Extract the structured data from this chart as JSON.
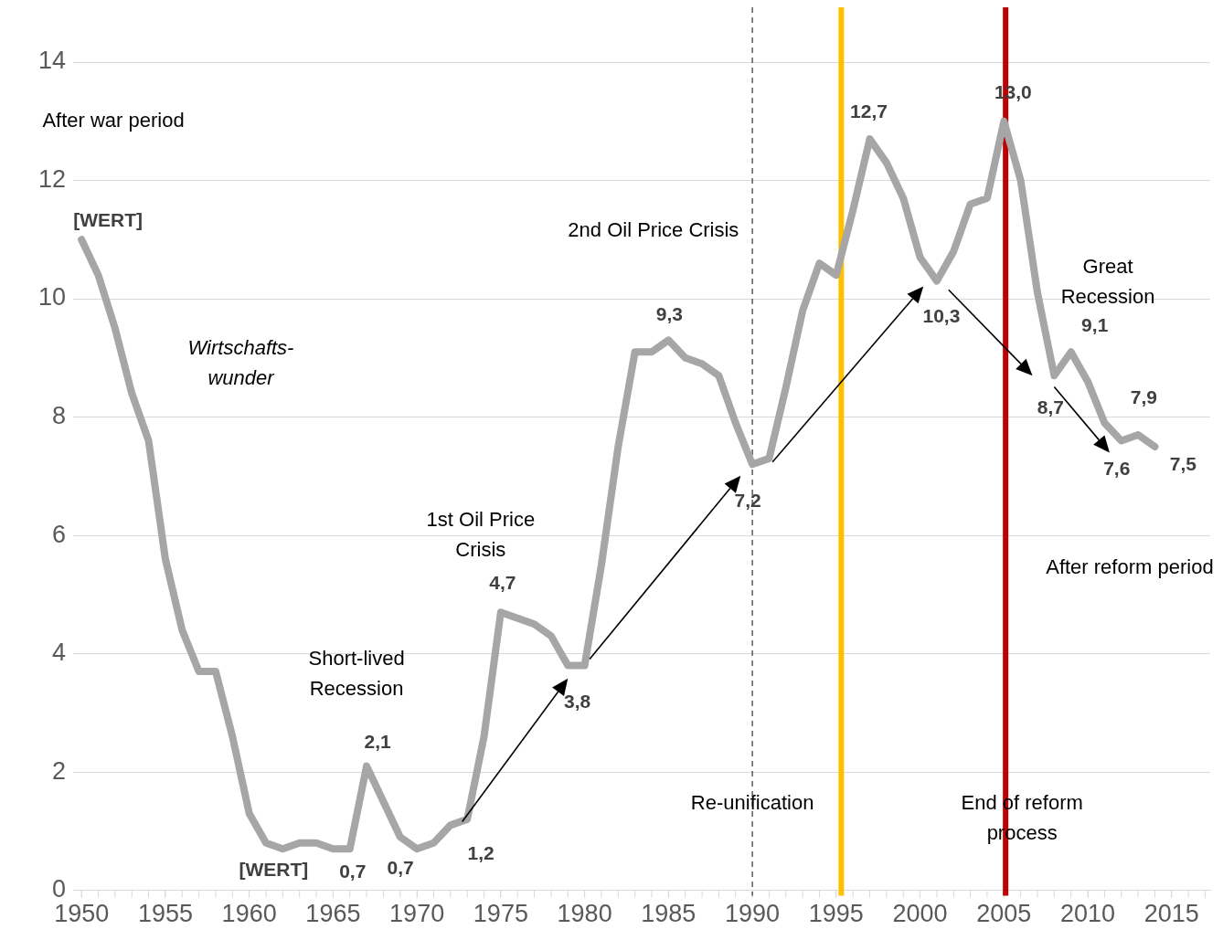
{
  "chart_data": {
    "type": "line",
    "x": [
      1950,
      1951,
      1952,
      1953,
      1954,
      1955,
      1956,
      1957,
      1958,
      1959,
      1960,
      1961,
      1962,
      1963,
      1964,
      1965,
      1966,
      1967,
      1968,
      1969,
      1970,
      1971,
      1972,
      1973,
      1974,
      1975,
      1976,
      1977,
      1978,
      1979,
      1980,
      1981,
      1982,
      1983,
      1984,
      1985,
      1986,
      1987,
      1988,
      1989,
      1990,
      1991,
      1992,
      1993,
      1994,
      1995,
      1996,
      1997,
      1998,
      1999,
      2000,
      2001,
      2002,
      2003,
      2004,
      2005,
      2006,
      2007,
      2008,
      2009,
      2010,
      2011,
      2012,
      2013,
      2014
    ],
    "series": [
      {
        "color": "#a6a6a6",
        "values": [
          11.0,
          10.4,
          9.5,
          8.4,
          7.6,
          5.6,
          4.4,
          3.7,
          3.7,
          2.6,
          1.3,
          0.8,
          0.7,
          0.8,
          0.8,
          0.7,
          0.7,
          2.1,
          1.5,
          0.9,
          0.7,
          0.8,
          1.1,
          1.2,
          2.6,
          4.7,
          4.6,
          4.5,
          4.3,
          3.8,
          3.8,
          5.5,
          7.5,
          9.1,
          9.1,
          9.3,
          9.0,
          8.9,
          8.7,
          7.9,
          7.2,
          7.3,
          8.5,
          9.8,
          10.6,
          10.4,
          11.5,
          12.7,
          12.3,
          11.7,
          10.7,
          10.3,
          10.8,
          11.6,
          11.7,
          13.0,
          12.0,
          10.1,
          8.7,
          9.1,
          8.6,
          7.9,
          7.6,
          7.7,
          7.5
        ],
        "value_labels": [
          "[WERT]",
          null,
          null,
          null,
          null,
          null,
          null,
          null,
          null,
          null,
          null,
          null,
          "[WERT]",
          null,
          null,
          null,
          "0,7",
          "2,1",
          null,
          null,
          "0,7",
          null,
          null,
          "1,2",
          null,
          "4,7",
          null,
          null,
          null,
          null,
          "3,8",
          null,
          null,
          null,
          null,
          "9,3",
          null,
          null,
          null,
          null,
          "7,2",
          null,
          null,
          null,
          null,
          null,
          null,
          "12,7",
          null,
          null,
          null,
          "10,3",
          null,
          null,
          null,
          "13,0",
          null,
          null,
          "8,7",
          "9,1",
          null,
          "7,9",
          "7,6",
          null,
          "7,5"
        ]
      }
    ],
    "xlim": [
      1949.5,
      2017.3
    ],
    "xticks": [
      1950,
      1955,
      1960,
      1965,
      1970,
      1975,
      1980,
      1985,
      1990,
      1995,
      2000,
      2005,
      2010,
      2015
    ],
    "ylim": [
      0,
      14
    ],
    "yticks": [
      0,
      2,
      4,
      6,
      8,
      10,
      12,
      14
    ],
    "grid": "y",
    "legend": false,
    "marker": "none",
    "line_style": "solid",
    "ref_lines": [
      {
        "axis": "x",
        "value": 1990,
        "label": "Re-unification",
        "color": "#404040",
        "line_style": "dashed"
      },
      {
        "axis": "x",
        "value": 1995.3,
        "color": "#ffc000"
      },
      {
        "axis": "x",
        "value": 2005.1,
        "label": "End of reform process",
        "color": "#c00000"
      }
    ],
    "annotations": [
      "After war period",
      "Wirtschafts-\nwunder",
      "Short-lived\nRecession",
      "1st Oil Price\nCrisis",
      "2nd Oil Price Crisis",
      "Great\nRecession",
      "After reform period"
    ]
  }
}
